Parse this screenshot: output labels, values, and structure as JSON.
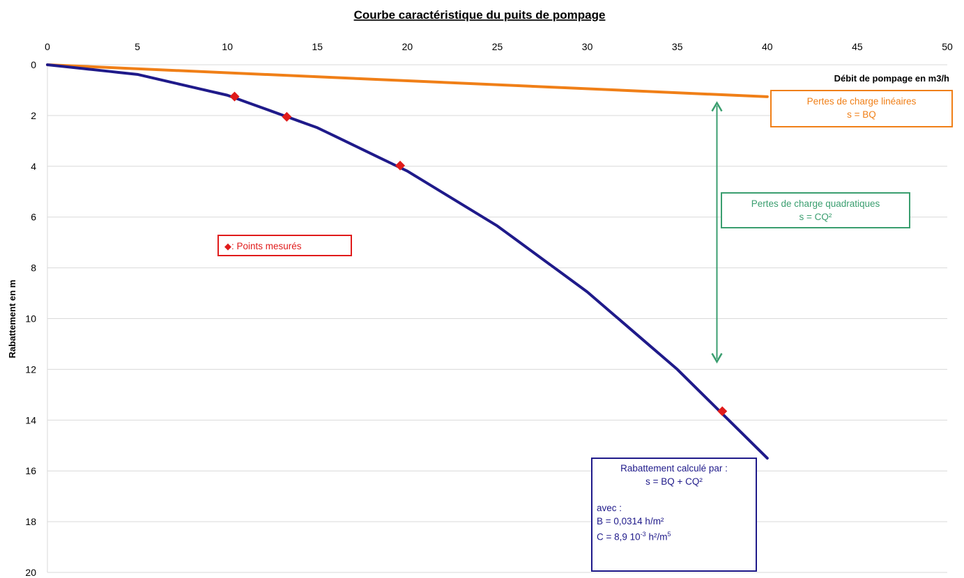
{
  "chart_data": {
    "type": "line",
    "title": "Courbe caractéristique du puits de pompage",
    "xlabel": "Débit de pompage en m3/h",
    "ylabel": "Rabattement en m",
    "xlim": [
      0,
      50
    ],
    "ylim": [
      0,
      20
    ],
    "y_inverted": true,
    "x_axis_position": "top",
    "xticks": [
      "0",
      "5",
      "10",
      "15",
      "20",
      "25",
      "30",
      "35",
      "40",
      "45",
      "50"
    ],
    "yticks": [
      "0",
      "2",
      "4",
      "6",
      "8",
      "10",
      "12",
      "14",
      "16",
      "18",
      "20"
    ],
    "grid": true,
    "series": [
      {
        "name": "Rabattement calculé",
        "type": "line",
        "color": "#1f1a8a",
        "x": [
          0,
          5,
          10,
          15,
          20,
          25,
          30,
          35,
          40
        ],
        "y": [
          0,
          0.38,
          1.2,
          2.48,
          4.19,
          6.35,
          8.95,
          12.0,
          15.5
        ]
      },
      {
        "name": "Pertes de charge linéaires",
        "type": "line",
        "color": "#f07f17",
        "x": [
          0,
          40
        ],
        "y": [
          0,
          1.26
        ]
      },
      {
        "name": "Points mesurés",
        "type": "scatter",
        "color": "#e01b1b",
        "x": [
          10.4,
          13.3,
          19.6,
          37.5
        ],
        "y": [
          1.25,
          2.05,
          3.97,
          13.65
        ]
      }
    ],
    "arrow": {
      "x": 37.2,
      "y_from": 1.5,
      "y_to": 11.7,
      "color": "#3a9e6f"
    }
  },
  "annotations": {
    "linear": {
      "line1": "Pertes de charge linéaires",
      "line2": "s = BQ"
    },
    "quadratic": {
      "line1": "Pertes de charge quadratiques",
      "line2": "s = CQ²"
    },
    "legend": {
      "symbol": "◆",
      "text": ": Points mesurés"
    },
    "calc": {
      "line1": "Rabattement calculé par :",
      "line2": "s = BQ + CQ²",
      "line3": "avec :",
      "line4": "B = 0,0314 h/m²",
      "line5_pre": "C = 8,9 10",
      "line5_exp": "-3",
      "line5_post": " h²/m",
      "line5_exp2": "5"
    }
  }
}
